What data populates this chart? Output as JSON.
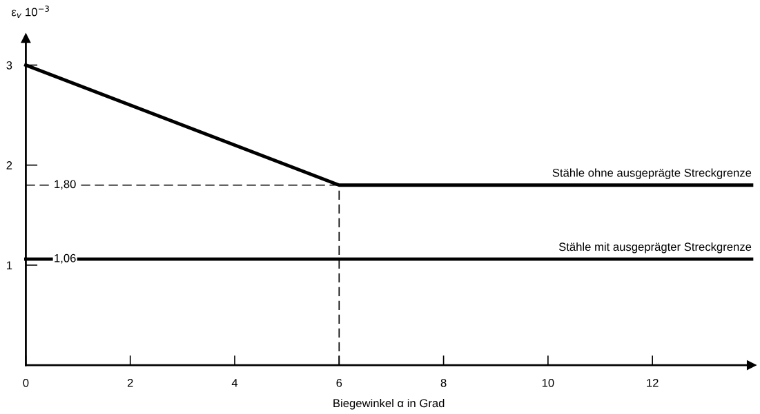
{
  "chart_data": {
    "type": "line",
    "xlabel": "Biegewinkel α in Grad",
    "ylabel": "ε$_{v}$ 10$^{−3}$",
    "xlim": [
      0,
      13.9
    ],
    "ylim": [
      0,
      3.27
    ],
    "xticks": [
      0,
      2,
      4,
      6,
      8,
      10,
      12
    ],
    "yticks": [
      1,
      2,
      3
    ],
    "grid": false,
    "legend": false,
    "marker": "none",
    "series": [
      {
        "name": "Stähle ohne ausgeprägte Streckgrenze",
        "color": "#000000",
        "x": [
          0,
          6,
          13.9
        ],
        "values": [
          3,
          1.8,
          1.8
        ],
        "line_style": "solid"
      },
      {
        "name": "Stähle mit ausgeprägter Streckgrenze",
        "color": "#000000",
        "x": [
          0,
          13.9
        ],
        "values": [
          1.06,
          1.06
        ],
        "line_style": "solid"
      }
    ],
    "ref_lines": [
      {
        "axis": "y",
        "value": 1.8,
        "color": "#000000",
        "line_style": "dashed"
      },
      {
        "axis": "x",
        "value": 6,
        "color": "#000000",
        "line_style": "dashed"
      }
    ],
    "annotations": [
      {
        "text": "1,80",
        "x": 0.75,
        "y": 1.8
      },
      {
        "text": "1,06",
        "x": 0.75,
        "y": 1.06
      }
    ]
  }
}
